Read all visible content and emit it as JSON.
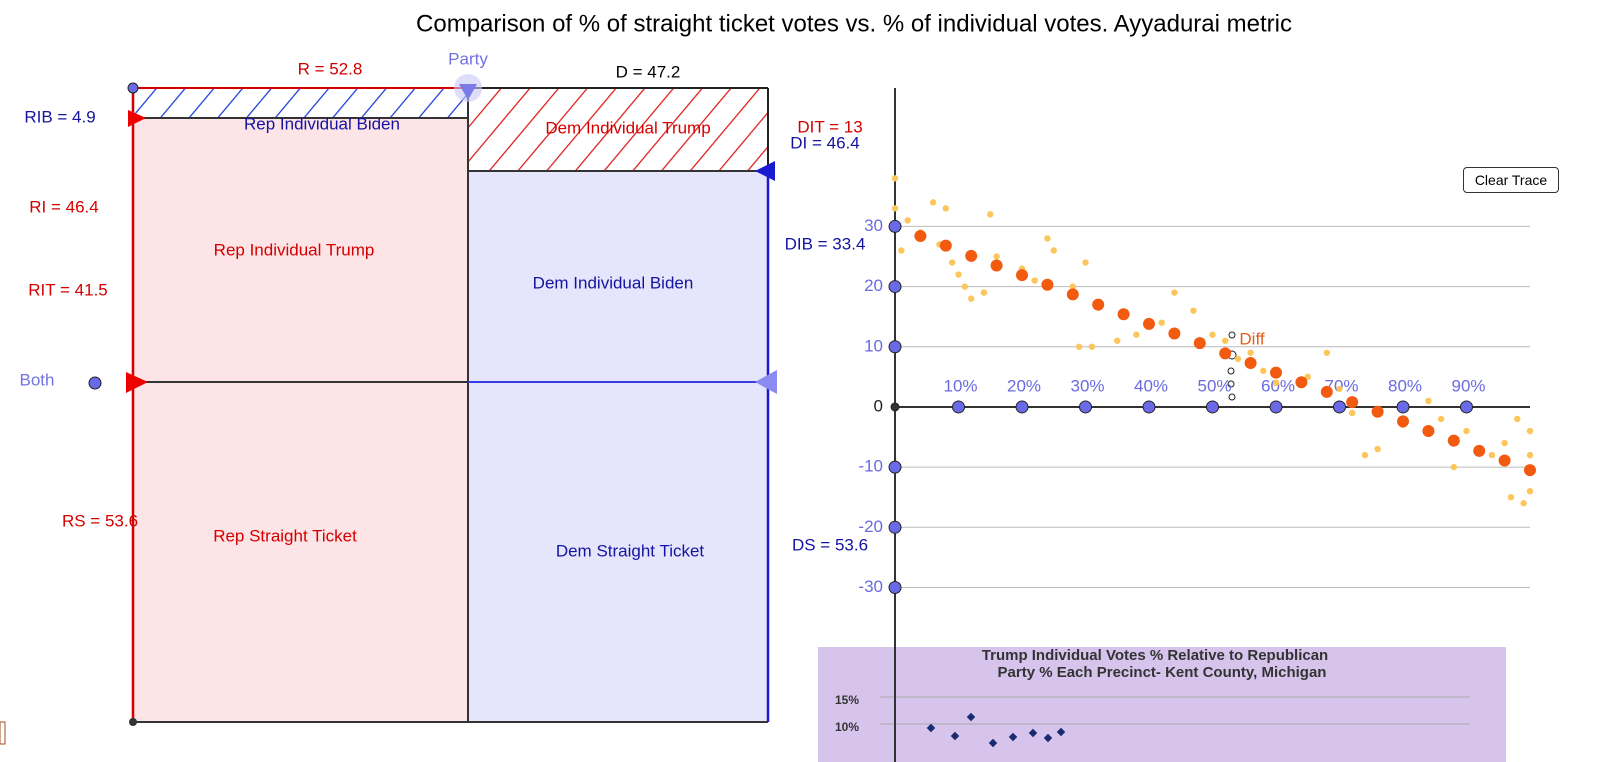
{
  "title": "Comparison of % of straight ticket votes vs. % of individual votes. Ayyadurai metric",
  "diagram": {
    "labels": [
      "R = 52.8",
      "Party",
      "D = 47.2",
      "RIB = 4.9",
      "Rep Individual Biden",
      "Dem Individual Trump",
      "DIT = 13",
      "DI = 46.4",
      "RI = 46.4",
      "Rep Individual Trump",
      "RIT = 41.5",
      "DIB = 33.4",
      "Dem Individual Biden",
      "Both",
      "RS = 53.6",
      "Rep Straight Ticket",
      "Dem Straight Ticket",
      "DS = 53.6",
      "Diff"
    ]
  },
  "button": "Clear Trace",
  "inset": {
    "title": [
      "Trump Individual Votes % Relative to Republican",
      "Party % Each Precinct- Kent County, Michigan"
    ],
    "ticks": [
      "15%",
      "10%"
    ]
  },
  "chart_data": {
    "type": "scatter",
    "xlim": [
      0,
      100
    ],
    "ylim": [
      -59,
      53
    ],
    "xticks": [
      {
        "value": 10,
        "label": "10%"
      },
      {
        "value": 20,
        "label": "20%"
      },
      {
        "value": 30,
        "label": "30%"
      },
      {
        "value": 40,
        "label": "40%"
      },
      {
        "value": 50,
        "label": "50%"
      },
      {
        "value": 60,
        "label": "60%"
      },
      {
        "value": 70,
        "label": "70%"
      },
      {
        "value": 80,
        "label": "80%"
      },
      {
        "value": 90,
        "label": "90%"
      }
    ],
    "yticks": [
      30,
      20,
      10,
      0,
      -10,
      -20,
      -30
    ],
    "grid": true,
    "series": [
      {
        "color": "#fcc65a",
        "x": [
          0,
          0,
          1,
          2,
          4,
          6,
          7,
          8,
          9,
          10,
          11,
          12,
          14,
          15,
          16,
          20,
          22,
          24,
          25,
          28,
          30,
          29,
          31,
          35,
          38,
          42,
          44,
          47,
          50,
          52,
          54,
          56,
          58,
          60,
          65,
          68,
          70,
          72,
          74,
          76,
          80,
          84,
          86,
          88,
          90,
          94,
          96,
          98,
          100,
          100,
          99,
          97,
          100
        ],
        "values": [
          38,
          33,
          26,
          31,
          29,
          34,
          27,
          33,
          24,
          22,
          20,
          18,
          19,
          32,
          25,
          23,
          21,
          28,
          26,
          20,
          24,
          10,
          10,
          11,
          12,
          14,
          19,
          16,
          12,
          11,
          8,
          9,
          6,
          4,
          5,
          9,
          3,
          -1,
          -8,
          -7,
          -3,
          1,
          -2,
          -10,
          -4,
          -8,
          -6,
          -2,
          -4,
          -14,
          -16,
          -15,
          -8
        ]
      },
      {
        "color": "#f25a10",
        "x": [
          0,
          4,
          8,
          12,
          16,
          20,
          24,
          28,
          32,
          36,
          40,
          44,
          48,
          52,
          56,
          60,
          64,
          68,
          72,
          76,
          80,
          84,
          88,
          92,
          96,
          100
        ],
        "values": [
          30,
          28.4,
          26.8,
          25.1,
          23.5,
          21.9,
          20.3,
          18.7,
          17,
          15.4,
          13.8,
          12.2,
          10.6,
          8.9,
          7.3,
          5.7,
          4.1,
          2.5,
          0.8,
          -0.8,
          -2.4,
          -4,
          -5.6,
          -7.3,
          -8.9,
          -10.5
        ]
      }
    ]
  }
}
